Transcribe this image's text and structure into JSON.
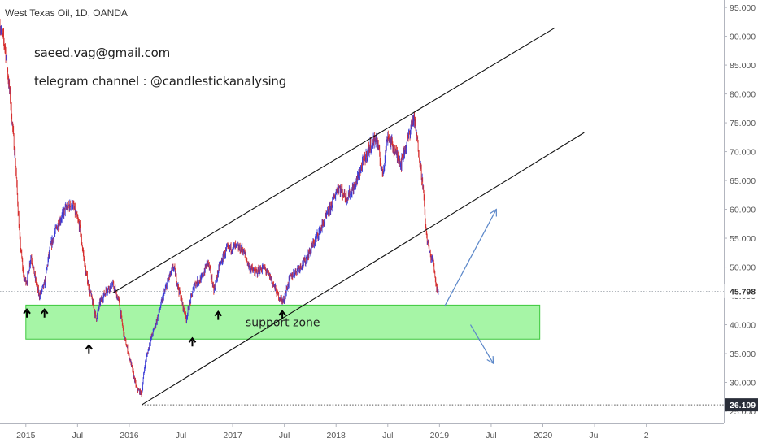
{
  "header": {
    "symbol_title": "West Texas Oil, 1D, OANDA"
  },
  "notes": {
    "email": "saeed.vag@gmail.com",
    "telegram": "telegram channel : @candlestickanalysing"
  },
  "price_labels": {
    "current": "45.798",
    "low": "26.109"
  },
  "colors": {
    "zone_fill": "#a6f5a6",
    "zone_stroke": "#3cc83c",
    "candle_up": "#3b3bd6",
    "candle_down": "#d62f2f",
    "channel_line": "#111111",
    "arrow_blue": "#5b87c9",
    "marker_arrow": "#000000",
    "current_tag": "#ffffff",
    "low_tag": "#2a2e39"
  },
  "chart_data": {
    "type": "candlestick",
    "title": "West Texas Oil, 1D, OANDA",
    "y_axis": {
      "position": "right",
      "ticks": [
        "25.000",
        "30.000",
        "35.000",
        "40.000",
        "45.000",
        "50.000",
        "55.000",
        "60.000",
        "65.000",
        "70.000",
        "75.000",
        "80.000",
        "85.000",
        "90.000",
        "95.000"
      ],
      "ylim": [
        25,
        96
      ]
    },
    "x_axis": {
      "ticks": [
        "2015",
        "Jul",
        "2016",
        "Jul",
        "2017",
        "Jul",
        "2018",
        "Jul",
        "2019",
        "Jul",
        "2020",
        "Jul",
        "2"
      ],
      "tick_dates": [
        2015.0,
        2015.5,
        2016.0,
        2016.5,
        2017.0,
        2017.5,
        2018.0,
        2018.5,
        2019.0,
        2019.5,
        2020.0,
        2020.5,
        2021.0
      ],
      "xlim": [
        2014.75,
        2021.75
      ]
    },
    "price_path": [
      [
        2014.75,
        92
      ],
      [
        2014.8,
        88
      ],
      [
        2014.85,
        79
      ],
      [
        2014.9,
        68
      ],
      [
        2014.94,
        55
      ],
      [
        2014.98,
        48
      ],
      [
        2015.01,
        47.5
      ],
      [
        2015.05,
        52
      ],
      [
        2015.09,
        48
      ],
      [
        2015.13,
        45
      ],
      [
        2015.18,
        47
      ],
      [
        2015.23,
        53
      ],
      [
        2015.3,
        57
      ],
      [
        2015.38,
        60
      ],
      [
        2015.45,
        61
      ],
      [
        2015.52,
        57
      ],
      [
        2015.58,
        49
      ],
      [
        2015.63,
        45
      ],
      [
        2015.68,
        41
      ],
      [
        2015.72,
        44
      ],
      [
        2015.78,
        46
      ],
      [
        2015.84,
        47
      ],
      [
        2015.9,
        44
      ],
      [
        2015.95,
        38
      ],
      [
        2016.02,
        33
      ],
      [
        2016.07,
        29
      ],
      [
        2016.12,
        28
      ],
      [
        2016.15,
        33
      ],
      [
        2016.2,
        37
      ],
      [
        2016.27,
        41
      ],
      [
        2016.33,
        45
      ],
      [
        2016.38,
        48
      ],
      [
        2016.43,
        50
      ],
      [
        2016.48,
        46
      ],
      [
        2016.55,
        41
      ],
      [
        2016.63,
        47
      ],
      [
        2016.7,
        48
      ],
      [
        2016.76,
        51
      ],
      [
        2016.82,
        46
      ],
      [
        2016.87,
        50
      ],
      [
        2016.94,
        53
      ],
      [
        2017.02,
        53.5
      ],
      [
        2017.1,
        53
      ],
      [
        2017.16,
        50
      ],
      [
        2017.22,
        49
      ],
      [
        2017.3,
        50
      ],
      [
        2017.37,
        48
      ],
      [
        2017.44,
        45
      ],
      [
        2017.49,
        44
      ],
      [
        2017.55,
        48
      ],
      [
        2017.62,
        49.5
      ],
      [
        2017.7,
        51
      ],
      [
        2017.78,
        54
      ],
      [
        2017.86,
        57
      ],
      [
        2017.94,
        60
      ],
      [
        2018.02,
        64
      ],
      [
        2018.1,
        62
      ],
      [
        2018.18,
        64
      ],
      [
        2018.26,
        68
      ],
      [
        2018.33,
        71
      ],
      [
        2018.39,
        72.5
      ],
      [
        2018.45,
        66
      ],
      [
        2018.5,
        73
      ],
      [
        2018.57,
        70
      ],
      [
        2018.63,
        68
      ],
      [
        2018.69,
        72
      ],
      [
        2018.75,
        76
      ],
      [
        2018.8,
        70
      ],
      [
        2018.84,
        64
      ],
      [
        2018.87,
        56
      ],
      [
        2018.91,
        52
      ],
      [
        2018.94,
        51
      ],
      [
        2018.97,
        46.5
      ],
      [
        2018.99,
        45.8
      ]
    ],
    "channel_lines": [
      {
        "x": [
          2015.84,
          2020.12
        ],
        "y": [
          45.5,
          91.5
        ]
      },
      {
        "x": [
          2016.12,
          2020.4
        ],
        "y": [
          26.1,
          73.3
        ]
      }
    ],
    "support_zone": {
      "x": [
        2015.0,
        2019.97
      ],
      "y": [
        37.5,
        43.4
      ],
      "label": "support zone"
    },
    "low_line": {
      "x": [
        2016.12,
        2021.75
      ],
      "y": 26.109
    },
    "current_line": {
      "y": 45.798
    },
    "arrow_markers": [
      [
        2015.01,
        42.5
      ],
      [
        2015.18,
        42.5
      ],
      [
        2015.61,
        36.3
      ],
      [
        2016.61,
        37.5
      ],
      [
        2016.86,
        42.1
      ],
      [
        2017.48,
        42.2
      ]
    ],
    "forecast_arrows": [
      {
        "from": [
          2019.05,
          43.2
        ],
        "to": [
          2019.55,
          60.0
        ]
      },
      {
        "from": [
          2019.3,
          40.0
        ],
        "to": [
          2019.52,
          33.3
        ]
      }
    ]
  }
}
